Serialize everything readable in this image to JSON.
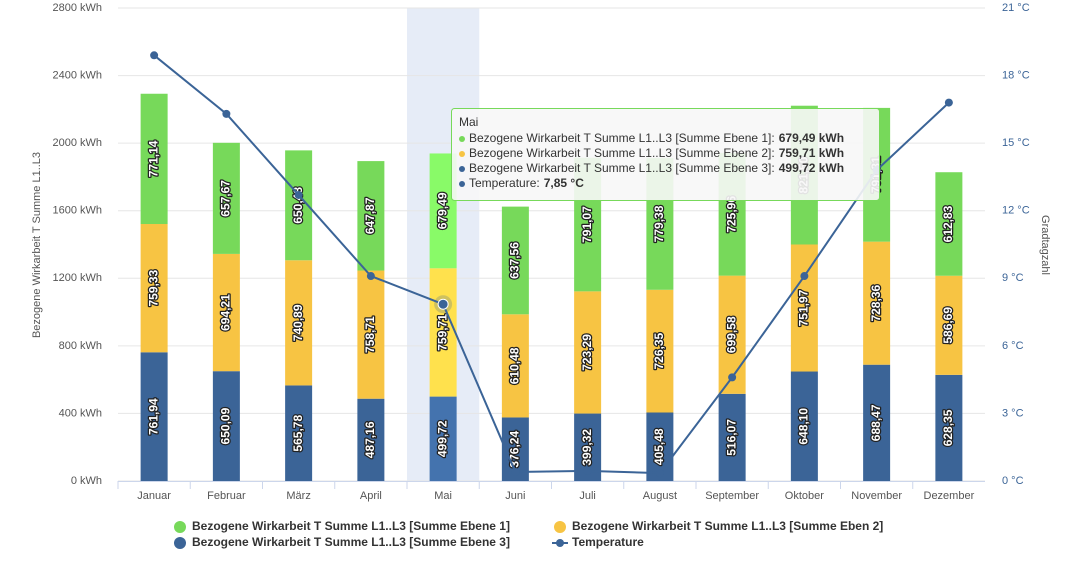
{
  "chart_data": {
    "type": "stacked-bar-line",
    "categories": [
      "Januar",
      "Februar",
      "März",
      "April",
      "Mai",
      "Juni",
      "Juli",
      "August",
      "September",
      "Oktober",
      "November",
      "Dezember"
    ],
    "y_axis_title": "Bezogene Wirkarbeit T Summe L1..L3",
    "y2_axis_title": "Gradtagzahl",
    "ylim": [
      0,
      2800
    ],
    "yticks": [
      {
        "value": 0,
        "label": "0 kWh"
      },
      {
        "value": 400,
        "label": "400 kWh"
      },
      {
        "value": 800,
        "label": "800 kWh"
      },
      {
        "value": 1200,
        "label": "1200 kWh"
      },
      {
        "value": 1600,
        "label": "1600 kWh"
      },
      {
        "value": 2000,
        "label": "2000 kWh"
      },
      {
        "value": 2400,
        "label": "2400 kWh"
      },
      {
        "value": 2800,
        "label": "2800 kWh"
      }
    ],
    "y2lim": [
      0,
      21
    ],
    "y2ticks": [
      {
        "value": 0,
        "label": "0 °C"
      },
      {
        "value": 3,
        "label": "3 °C"
      },
      {
        "value": 6,
        "label": "6 °C"
      },
      {
        "value": 9,
        "label": "9 °C"
      },
      {
        "value": 12,
        "label": "12 °C"
      },
      {
        "value": 15,
        "label": "15 °C"
      },
      {
        "value": 18,
        "label": "18 °C"
      },
      {
        "value": 21,
        "label": "21 °C"
      }
    ],
    "grid": true,
    "series": [
      {
        "name": "Bezogene Wirkarbeit T Summe L1..L3 [Summe Ebene 3]",
        "type": "bar",
        "color": "#3b6497",
        "values": [
          761.94,
          650.09,
          565.78,
          487.16,
          499.72,
          376.24,
          399.32,
          405.48,
          516.07,
          648.1,
          688.47,
          628.35
        ],
        "value_labels": [
          "761,94",
          "650,09",
          "565,78",
          "487,16",
          "499,72",
          "376,24",
          "399,32",
          "405,48",
          "516,07",
          "648,10",
          "688,47",
          "628,35"
        ]
      },
      {
        "name": "Bezogene Wirkarbeit T Summe L1..L3 [Summe Eben 2]",
        "type": "bar",
        "color": "#f7c443",
        "values": [
          759.33,
          694.21,
          740.89,
          758.71,
          759.71,
          610.48,
          723.29,
          726.35,
          699.58,
          751.97,
          728.36,
          586.69
        ],
        "value_labels": [
          "759,33",
          "694,21",
          "740,89",
          "758,71",
          "759,71",
          "610,48",
          "723,29",
          "726,35",
          "699,58",
          "751,97",
          "728,36",
          "586,69"
        ]
      },
      {
        "name": "Bezogene Wirkarbeit T Summe L1..L3 [Summe Ebene 1]",
        "type": "bar",
        "color": "#77d95a",
        "values": [
          771.14,
          657.67,
          650.48,
          647.87,
          679.49,
          637.56,
          791.07,
          779.38,
          725.96,
          821.5,
          791.81,
          612.83
        ],
        "value_labels": [
          "771,14",
          "657,67",
          "650,48",
          "647,87",
          "679,49",
          "637,56",
          "791,07",
          "779,38",
          "725,96",
          "821,50",
          "791,81",
          "612,83"
        ]
      },
      {
        "name": "Temperature",
        "type": "line",
        "axis": "y2",
        "color": "#3b6497",
        "values": [
          18.9,
          16.3,
          12.7,
          9.1,
          7.85,
          0.4,
          0.45,
          0.35,
          4.6,
          9.1,
          13.8,
          16.8
        ]
      }
    ],
    "legend_order": [
      2,
      1,
      0,
      3
    ],
    "tooltip": {
      "title": "Mai",
      "rows": [
        {
          "label": "Bezogene Wirkarbeit T Summe L1..L3 [Summe Ebene 1]:",
          "value": "679,49 kWh"
        },
        {
          "label": "Bezogene Wirkarbeit T Summe L1..L3 [Summe Ebene 2]:",
          "value": "759,71 kWh"
        },
        {
          "label": "Bezogene Wirkarbeit T Summe L1..L3 [Summe Ebene 3]:",
          "value": "499,72 kWh"
        },
        {
          "label": "Temperature:",
          "value": "7,85 °C"
        }
      ]
    }
  }
}
